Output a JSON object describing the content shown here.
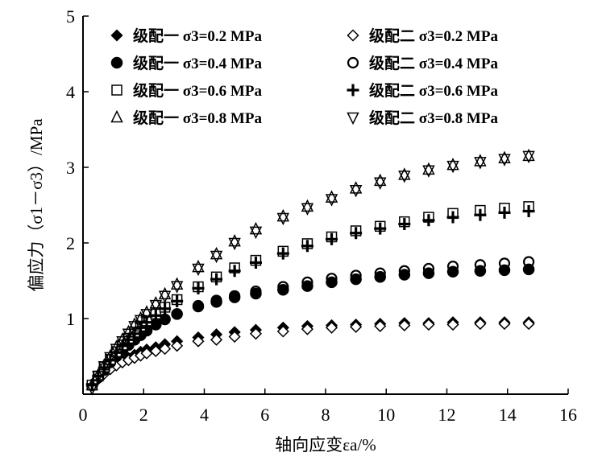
{
  "chart_data": {
    "type": "scatter",
    "title": "",
    "xlabel": "轴向应变εa/%",
    "ylabel": "偏应力（σ1－σ3）/MPa",
    "xlim": [
      0,
      16
    ],
    "ylim": [
      0,
      5
    ],
    "xticks": [
      "0",
      "2",
      "4",
      "6",
      "8",
      "10",
      "12",
      "14",
      "16"
    ],
    "yticks": [
      "1",
      "2",
      "3",
      "4",
      "5"
    ],
    "grid": false,
    "legend_position": "top",
    "x": [
      0.3,
      0.5,
      0.7,
      0.9,
      1.1,
      1.3,
      1.5,
      1.7,
      1.9,
      2.1,
      2.4,
      2.7,
      3.1,
      3.8,
      4.4,
      5.0,
      5.7,
      6.6,
      7.4,
      8.2,
      9.0,
      9.8,
      10.6,
      11.4,
      12.2,
      13.1,
      13.9,
      14.7
    ],
    "series": [
      {
        "name": "级配一 σ3=0.2 MPa",
        "marker": "diamond-filled",
        "values": [
          0.12,
          0.2,
          0.28,
          0.35,
          0.4,
          0.44,
          0.48,
          0.52,
          0.56,
          0.59,
          0.62,
          0.66,
          0.7,
          0.75,
          0.79,
          0.82,
          0.85,
          0.88,
          0.9,
          0.91,
          0.92,
          0.93,
          0.94,
          0.94,
          0.95,
          0.95,
          0.95,
          0.95
        ]
      },
      {
        "name": "级配二 σ3=0.2 MPa",
        "marker": "diamond-open",
        "values": [
          0.12,
          0.2,
          0.27,
          0.33,
          0.38,
          0.42,
          0.45,
          0.48,
          0.51,
          0.54,
          0.57,
          0.6,
          0.64,
          0.7,
          0.72,
          0.76,
          0.8,
          0.83,
          0.86,
          0.88,
          0.89,
          0.9,
          0.91,
          0.92,
          0.92,
          0.93,
          0.93,
          0.93
        ]
      },
      {
        "name": "级配一 σ3=0.4 MPa",
        "marker": "circle-filled",
        "values": [
          0.12,
          0.22,
          0.32,
          0.42,
          0.5,
          0.58,
          0.65,
          0.72,
          0.78,
          0.84,
          0.92,
          0.99,
          1.06,
          1.16,
          1.22,
          1.28,
          1.33,
          1.38,
          1.43,
          1.48,
          1.52,
          1.55,
          1.58,
          1.6,
          1.62,
          1.63,
          1.64,
          1.65
        ]
      },
      {
        "name": "级配二 σ3=0.4 MPa",
        "marker": "circle-open",
        "values": [
          0.12,
          0.22,
          0.32,
          0.42,
          0.5,
          0.58,
          0.65,
          0.72,
          0.78,
          0.84,
          0.92,
          0.99,
          1.06,
          1.17,
          1.24,
          1.3,
          1.36,
          1.42,
          1.48,
          1.53,
          1.57,
          1.6,
          1.63,
          1.66,
          1.69,
          1.71,
          1.73,
          1.75
        ]
      },
      {
        "name": "级配一 σ3=0.6 MPa",
        "marker": "square-open",
        "values": [
          0.12,
          0.24,
          0.36,
          0.46,
          0.56,
          0.65,
          0.74,
          0.82,
          0.9,
          0.97,
          1.06,
          1.15,
          1.25,
          1.42,
          1.55,
          1.67,
          1.77,
          1.89,
          1.99,
          2.08,
          2.16,
          2.22,
          2.28,
          2.34,
          2.39,
          2.43,
          2.46,
          2.48
        ]
      },
      {
        "name": "级配二 σ3=0.6 MPa",
        "marker": "plus",
        "values": [
          0.12,
          0.24,
          0.35,
          0.45,
          0.55,
          0.64,
          0.72,
          0.8,
          0.88,
          0.95,
          1.04,
          1.13,
          1.23,
          1.4,
          1.52,
          1.63,
          1.74,
          1.86,
          1.96,
          2.05,
          2.13,
          2.19,
          2.25,
          2.3,
          2.34,
          2.37,
          2.4,
          2.42
        ]
      },
      {
        "name": "级配一 σ3=0.8 MPa",
        "marker": "triangle-up",
        "values": [
          0.12,
          0.25,
          0.38,
          0.5,
          0.62,
          0.72,
          0.82,
          0.92,
          1.0,
          1.08,
          1.2,
          1.32,
          1.45,
          1.68,
          1.85,
          2.02,
          2.18,
          2.35,
          2.48,
          2.6,
          2.72,
          2.82,
          2.9,
          2.97,
          3.03,
          3.08,
          3.12,
          3.15
        ]
      },
      {
        "name": "级配二 σ3=0.8 MPa",
        "marker": "triangle-down",
        "values": [
          0.08,
          0.24,
          0.37,
          0.49,
          0.6,
          0.7,
          0.8,
          0.9,
          0.98,
          1.06,
          1.18,
          1.3,
          1.43,
          1.66,
          1.83,
          2.0,
          2.15,
          2.33,
          2.46,
          2.58,
          2.7,
          2.8,
          2.89,
          2.96,
          3.02,
          3.07,
          3.11,
          3.15
        ]
      }
    ]
  }
}
